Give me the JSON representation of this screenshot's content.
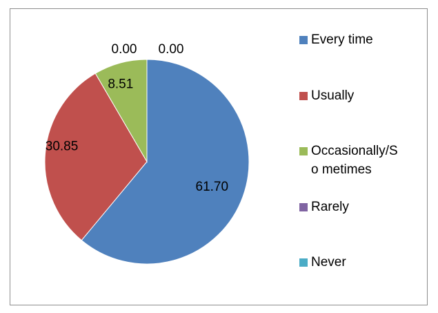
{
  "chart_data": {
    "type": "pie",
    "categories": [
      "Every time",
      "Usually",
      "Occasionally/Sometimes",
      "Rarely",
      "Never"
    ],
    "values": [
      61.7,
      30.85,
      8.51,
      0.0,
      0.0
    ],
    "value_labels": [
      "61.70",
      "30.85",
      "8.51",
      "0.00",
      "0.00"
    ],
    "colors": [
      "#4f81bd",
      "#c0504d",
      "#9bbb59",
      "#8064a2",
      "#4bacc6"
    ],
    "legend_labels": [
      "Every time",
      "Usually",
      "Occasionally/So metimes",
      "Rarely",
      "Never"
    ],
    "legend_position": "right",
    "start_angle_deg": 0,
    "direction": "clockwise"
  }
}
